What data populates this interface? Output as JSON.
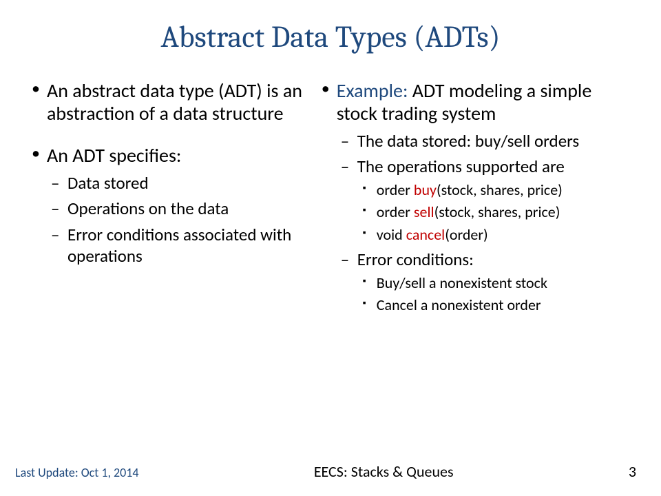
{
  "title": "Abstract Data Types (ADTs)",
  "colors": {
    "title": "#1f497d",
    "example_label": "#1f497d",
    "keyword": "#c00000",
    "text": "#000000",
    "background": "#ffffff",
    "footer_left": "#1f497d"
  },
  "fonts": {
    "title_family": "Cambria",
    "body_family": "Calibri",
    "title_size_pt": 40,
    "lvl1_size_pt": 28,
    "lvl2_size_pt": 24,
    "lvl3_size_pt": 20
  },
  "left": {
    "b1": "An abstract data type (ADT) is an abstraction of a data structure",
    "b2": "An ADT specifies:",
    "b2_subs": {
      "s1": "Data stored",
      "s2": "Operations on the data",
      "s3": "Error conditions associated with operations"
    }
  },
  "right": {
    "example_label": "Example:",
    "example_rest": " ADT modeling a simple stock trading system",
    "s1": "The data stored:  buy/sell orders",
    "s2": "The operations supported are",
    "ops": {
      "o1_pre": "order ",
      "o1_kw": "buy",
      "o1_post": "(stock, shares, price)",
      "o2_pre": "order ",
      "o2_kw": "sell",
      "o2_post": "(stock, shares, price)",
      "o3_pre": "void ",
      "o3_kw": "cancel",
      "o3_post": "(order)"
    },
    "s3": "Error conditions:",
    "errs": {
      "e1": "Buy/sell a nonexistent stock",
      "e2": "Cancel a nonexistent order"
    }
  },
  "footer": {
    "update": "Last Update: Oct 1, 2014",
    "center": "EECS: Stacks & Queues",
    "page": "3"
  }
}
